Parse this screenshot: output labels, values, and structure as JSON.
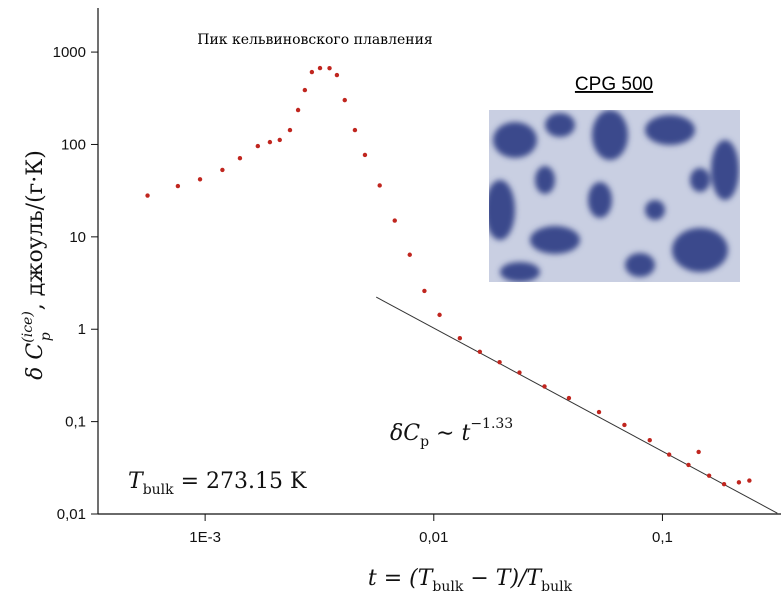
{
  "chart_data": {
    "type": "scatter",
    "annotation": "Пик кельвиновского плавления",
    "inset_title": "CPG 500",
    "y_label": [
      "δ C",
      "(ice)",
      "p",
      ", джоуль/(г·К)"
    ],
    "x_label": [
      "t = (T",
      "bulk",
      " − T)/T",
      "bulk"
    ],
    "power_law": [
      "δC",
      "p",
      " ∼ t",
      "−1.33"
    ],
    "t_bulk": [
      "T",
      "bulk",
      " = 273.15 K"
    ],
    "log_x": true,
    "log_y": true,
    "xlim": [
      0.00034,
      0.33
    ],
    "ylim": [
      0.01,
      3000
    ],
    "xticks": [
      {
        "value": 0.001,
        "label": "1E-3"
      },
      {
        "value": 0.01,
        "label": "0,01"
      },
      {
        "value": 0.1,
        "label": "0,1"
      }
    ],
    "yticks": [
      {
        "value": 0.01,
        "label": "0,01"
      },
      {
        "value": 0.1,
        "label": "0,1"
      },
      1,
      10,
      100,
      1000
    ],
    "x": [
      0.00056,
      0.00076,
      0.00095,
      0.00119,
      0.00142,
      0.0017,
      0.00192,
      0.00212,
      0.00235,
      0.00255,
      0.00273,
      0.00293,
      0.00318,
      0.0035,
      0.00377,
      0.00408,
      0.00452,
      0.005,
      0.0058,
      0.00675,
      0.00785,
      0.0091,
      0.0106,
      0.013,
      0.0159,
      0.0194,
      0.0237,
      0.0305,
      0.039,
      0.0528,
      0.0682,
      0.088,
      0.107,
      0.13,
      0.144,
      0.16,
      0.186,
      0.216,
      0.24
    ],
    "series": [
      {
        "color": "#c0261f",
        "values": [
          28,
          35.5,
          42,
          53,
          71,
          96,
          106,
          112,
          143,
          236,
          388,
          608,
          671,
          670,
          564,
          302,
          143,
          77,
          36,
          15,
          6.4,
          2.6,
          1.43,
          0.8,
          0.57,
          0.44,
          0.34,
          0.24,
          0.18,
          0.127,
          0.092,
          0.063,
          0.044,
          0.034,
          0.047,
          0.026,
          0.021,
          0.022,
          0.023
        ]
      }
    ],
    "fit_line": {
      "color": "#333333",
      "x": [
        0.0056,
        0.318
      ],
      "values": [
        2.23,
        0.0102
      ]
    }
  }
}
